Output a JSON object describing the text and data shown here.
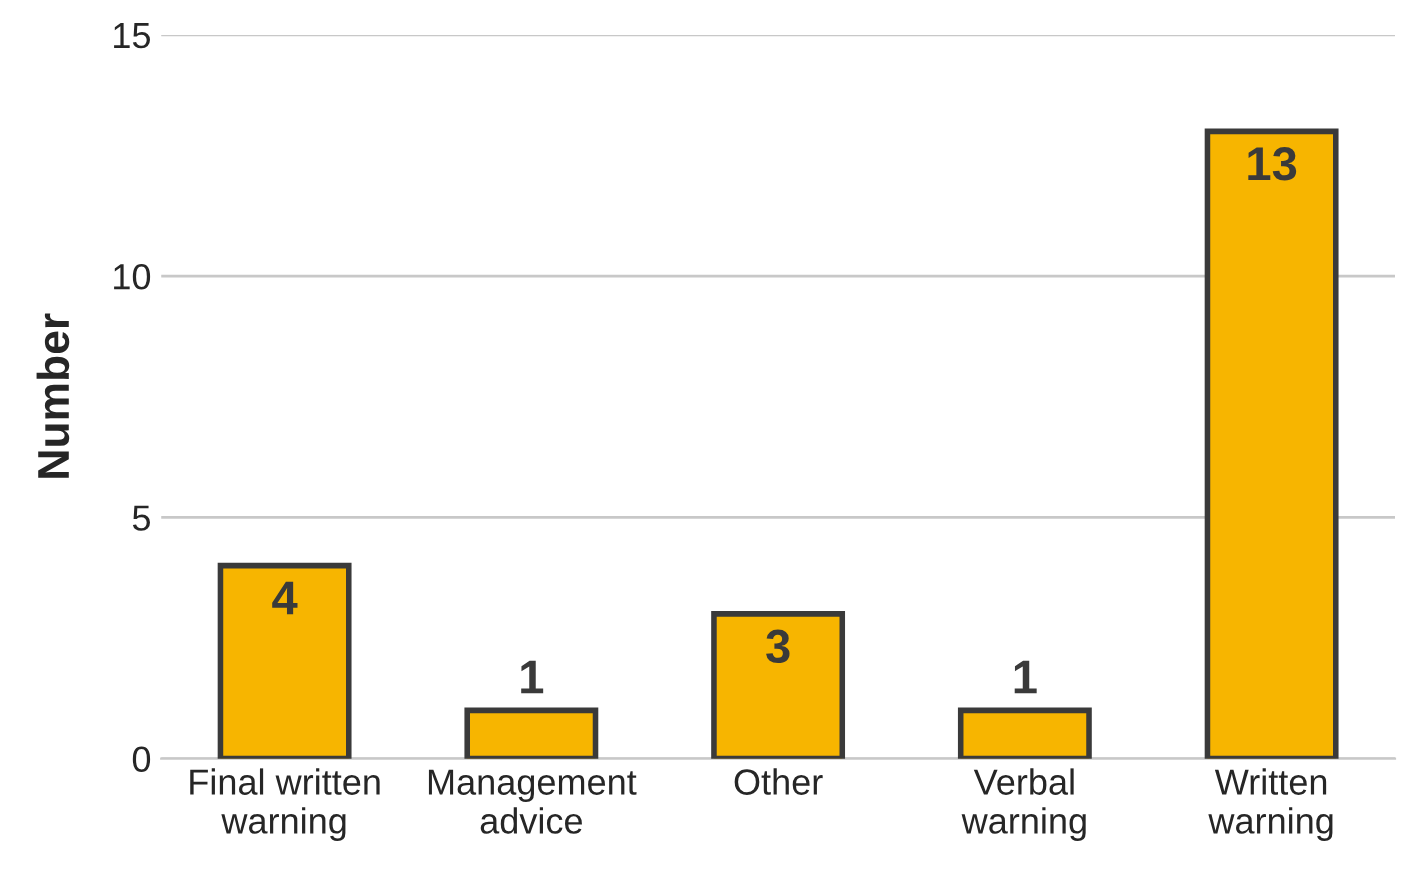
{
  "chart_data": {
    "type": "bar",
    "ylabel": "Number",
    "categories": [
      "Final written\nwarning",
      "Management\nadvice",
      "Other",
      "Verbal\nwarning",
      "Written\nwarning"
    ],
    "values": [
      4,
      1,
      3,
      1,
      13
    ],
    "color": "#f7b500",
    "ylim": [
      0,
      15
    ],
    "yticks": [
      0,
      5,
      10,
      15
    ],
    "grid": "y",
    "data_labels": true
  }
}
